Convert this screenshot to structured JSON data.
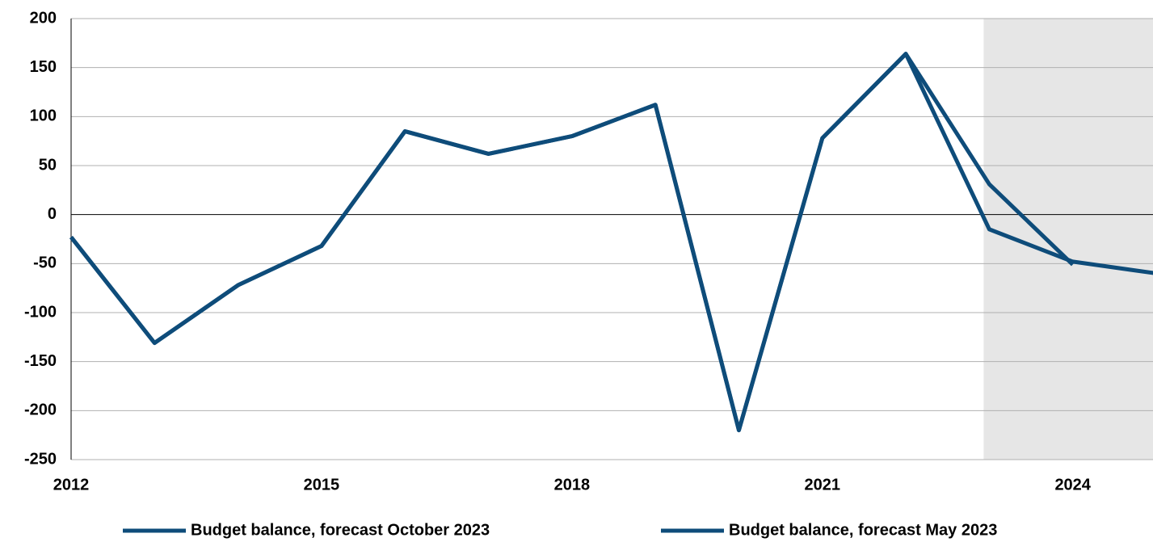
{
  "chart_data": {
    "type": "line",
    "x": [
      2012,
      2013,
      2014,
      2015,
      2016,
      2017,
      2018,
      2019,
      2020,
      2021,
      2022,
      2023,
      2024,
      2025
    ],
    "series": [
      {
        "name": "Budget balance, forecast October 2023",
        "color": "#0e4c7a",
        "values": [
          -23,
          -131,
          -72,
          -32,
          85,
          62,
          80,
          112,
          -220,
          78,
          164,
          -15,
          -48,
          -60
        ]
      },
      {
        "name": "Budget balance, forecast May 2023",
        "color": "#0e4c7a",
        "values": [
          -23,
          -131,
          -72,
          -32,
          85,
          62,
          80,
          112,
          -220,
          78,
          164,
          31,
          -51,
          null
        ]
      }
    ],
    "xlim": [
      2012,
      2025
    ],
    "xticks": [
      2012,
      2015,
      2018,
      2021,
      2024
    ],
    "ylim": [
      -250,
      200
    ],
    "yticks": [
      -250,
      -200,
      -150,
      -100,
      -50,
      0,
      50,
      100,
      150,
      200
    ],
    "forecast_start": 2023,
    "forecast_end": 2025,
    "grid": true,
    "legend": "bottom"
  }
}
